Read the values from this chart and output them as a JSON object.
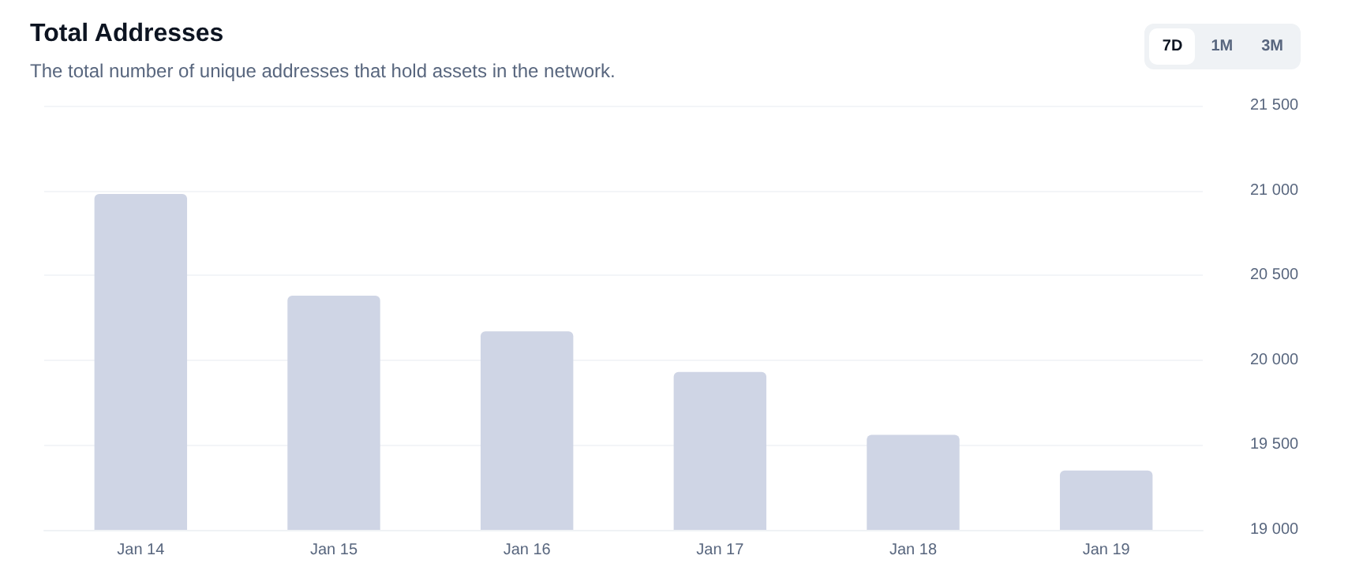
{
  "chart_data": {
    "type": "bar",
    "title": "Total Addresses",
    "subtitle": "The total number of unique addresses that hold assets in the network.",
    "annotations": [
      "7D",
      "1M",
      "3M"
    ],
    "categories": [
      "Jan 14",
      "Jan 15",
      "Jan 16",
      "Jan 17",
      "Jan 18",
      "Jan 19"
    ],
    "values": [
      20980,
      20380,
      20170,
      19930,
      19560,
      19350
    ],
    "color": "#cfd5e5",
    "ylim": [
      19000,
      21500
    ],
    "yticks": [
      {
        "value": 19000,
        "label": "19 000"
      },
      {
        "value": 19500,
        "label": "19 500"
      },
      {
        "value": 20000,
        "label": "20 000"
      },
      {
        "value": 20500,
        "label": "20 500"
      },
      {
        "value": 21000,
        "label": "21 000"
      },
      {
        "value": 21500,
        "label": "21 500"
      }
    ],
    "grid": "y"
  }
}
